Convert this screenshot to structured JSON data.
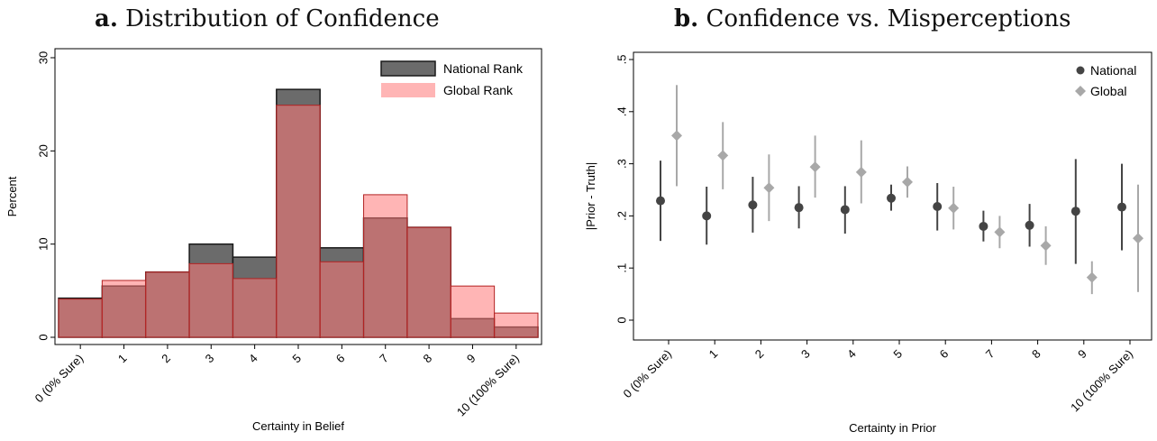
{
  "panels": {
    "a": {
      "label": "a.",
      "title": "Distribution of Confidence"
    },
    "b": {
      "label": "b.",
      "title": "Confidence vs. Misperceptions"
    }
  },
  "colors": {
    "national_bar_fill": "#6b6b6b",
    "national_bar_edge": "#1a1a1a",
    "global_bar_fill": "rgba(255,120,120,0.55)",
    "global_bar_edge": "#b22222",
    "national_marker": "#444444",
    "global_marker": "#a8a8a8"
  },
  "chart_data": [
    {
      "type": "bar",
      "title": "",
      "xlabel": "Certainty in Belief",
      "ylabel": "Percent",
      "ylim": [
        0,
        30
      ],
      "yticks": [
        "0",
        "10",
        "20",
        "30"
      ],
      "categories": [
        "0 (0% Sure)",
        "1",
        "2",
        "3",
        "4",
        "5",
        "6",
        "7",
        "8",
        "9",
        "10 (100% Sure)"
      ],
      "legend_position": "top-right",
      "series": [
        {
          "name": "National Rank",
          "values": [
            4.2,
            5.5,
            7.0,
            10.0,
            8.6,
            26.6,
            9.6,
            12.8,
            11.8,
            2.0,
            1.1
          ]
        },
        {
          "name": "Global Rank",
          "values": [
            4.1,
            6.1,
            7.0,
            7.9,
            6.3,
            24.9,
            8.1,
            15.3,
            11.8,
            5.5,
            2.6
          ]
        }
      ]
    },
    {
      "type": "scatter",
      "title": "",
      "xlabel": "Certainty in Prior",
      "ylabel": "|Prior - Truth|",
      "ylim": [
        0,
        0.5
      ],
      "yticks": [
        "0",
        ".1",
        ".2",
        ".3",
        ".4",
        ".5"
      ],
      "categories": [
        "0 (0% Sure)",
        "1",
        "2",
        "3",
        "4",
        "5",
        "6",
        "7",
        "8",
        "9",
        "10 (100% Sure)"
      ],
      "legend_position": "top-right",
      "series": [
        {
          "name": "National",
          "values": [
            0.229,
            0.2,
            0.221,
            0.216,
            0.212,
            0.234,
            0.218,
            0.18,
            0.182,
            0.209,
            0.217
          ],
          "ci_low": [
            0.152,
            0.145,
            0.168,
            0.176,
            0.166,
            0.21,
            0.172,
            0.151,
            0.141,
            0.108,
            0.134
          ],
          "ci_high": [
            0.306,
            0.256,
            0.275,
            0.257,
            0.257,
            0.26,
            0.263,
            0.21,
            0.223,
            0.309,
            0.3
          ]
        },
        {
          "name": "Global",
          "values": [
            0.354,
            0.316,
            0.254,
            0.294,
            0.284,
            0.265,
            0.215,
            0.169,
            0.143,
            0.082,
            0.157
          ],
          "ci_low": [
            0.257,
            0.251,
            0.19,
            0.235,
            0.224,
            0.235,
            0.174,
            0.138,
            0.106,
            0.05,
            0.054
          ],
          "ci_high": [
            0.451,
            0.38,
            0.318,
            0.354,
            0.345,
            0.295,
            0.256,
            0.2,
            0.18,
            0.113,
            0.26
          ]
        }
      ]
    }
  ]
}
